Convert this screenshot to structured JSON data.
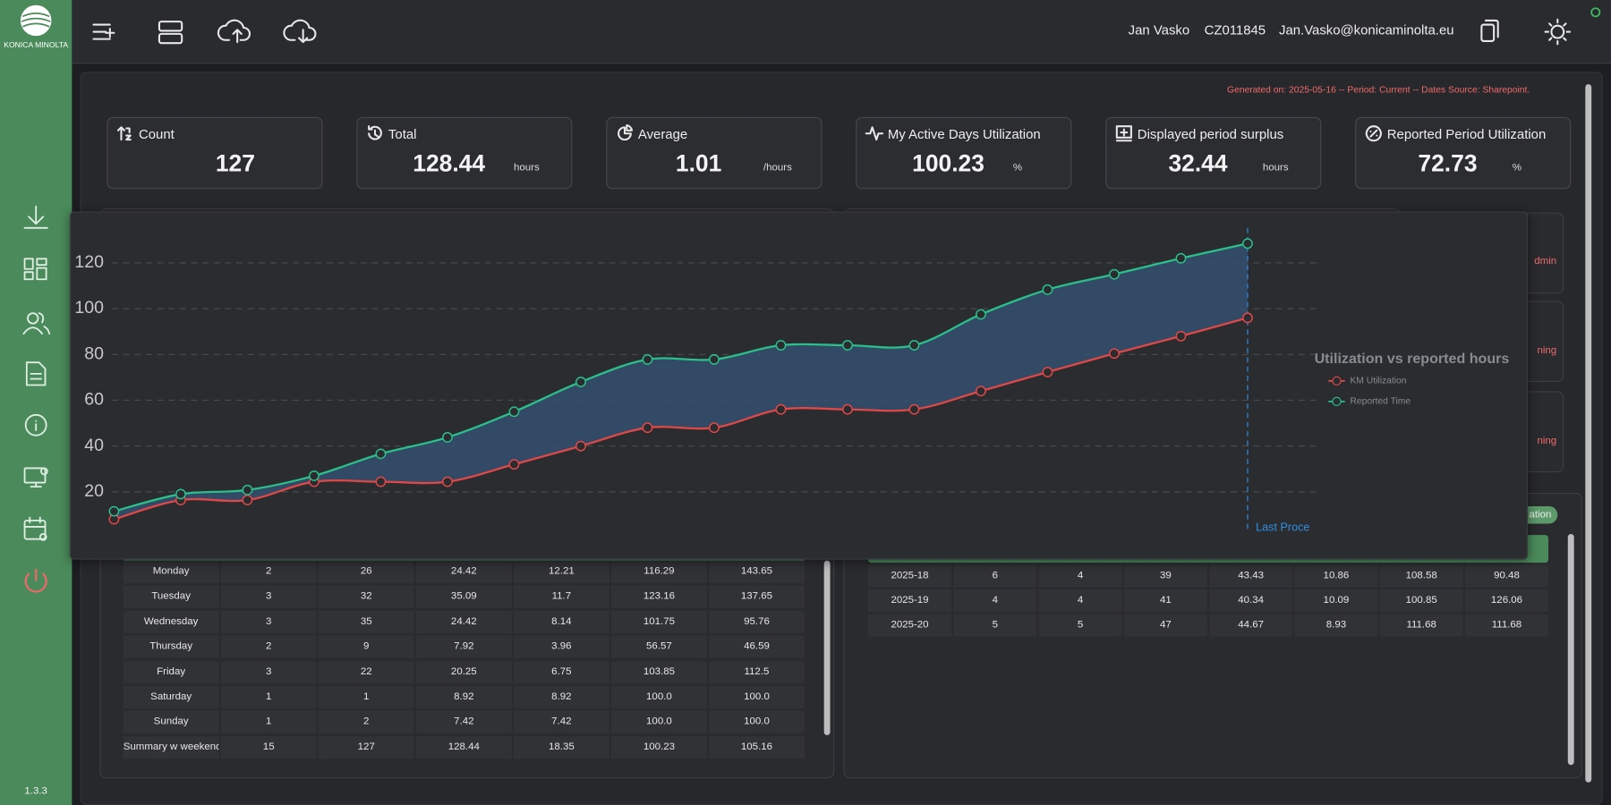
{
  "header": {
    "logo_text": "KONICA MINOLTA",
    "user_name": "Jan Vasko",
    "user_id": "CZ011845",
    "email": "Jan.Vasko@konicaminolta.eu"
  },
  "version": "1.3.3",
  "generated_note": "Generated on: 2025-05-16 -- Period: Current -- Dates Source: Sharepoint.",
  "cards": [
    {
      "title": "Count",
      "value": "127"
    },
    {
      "title": "Total",
      "value": "128.44",
      "unit": "hours"
    },
    {
      "title": "Average",
      "value": "1.01",
      "unit": "/hours"
    },
    {
      "title": "My Active Days Utilization",
      "value": "100.23",
      "unit": "%"
    },
    {
      "title": "Displayed period surplus",
      "value": "32.44",
      "unit": "hours"
    },
    {
      "title": "Reported Period Utilization",
      "value": "72.73",
      "unit": "%"
    }
  ],
  "side_fragments": [
    "dmin",
    "ning",
    "ning"
  ],
  "pill_fragment": "ation",
  "chart_data": {
    "type": "line",
    "title": "Utilization vs reported hours",
    "categories": [
      null,
      null,
      null,
      null,
      null,
      null,
      null,
      null,
      null,
      null,
      null,
      null,
      null,
      null,
      null,
      null,
      null,
      null
    ],
    "series": [
      {
        "name": "KM Utilization",
        "color": "#e04848",
        "values": [
          8,
          16.4,
          16.4,
          24.4,
          24.4,
          24.4,
          32,
          40,
          48,
          48,
          56,
          56,
          56,
          64,
          72.3,
          80.4,
          88,
          96
        ]
      },
      {
        "name": "Reported Time",
        "color": "#2bbf8a",
        "values": [
          11.5,
          19,
          20.8,
          27,
          36.6,
          43.8,
          55,
          68,
          77.8,
          77.8,
          84,
          84,
          84,
          97.5,
          108.3,
          115,
          122,
          128.44
        ]
      }
    ],
    "ylim": [
      0,
      130
    ],
    "yticks": [
      20,
      40,
      60,
      80,
      100,
      120
    ],
    "grid": true,
    "annotation": "Last Proce"
  },
  "weekday_table": {
    "rows": [
      [
        "Monday",
        "2",
        "26",
        "24.42",
        "12.21",
        "116.29",
        "143.65"
      ],
      [
        "Tuesday",
        "3",
        "32",
        "35.09",
        "11.7",
        "123.16",
        "137.65"
      ],
      [
        "Wednesday",
        "3",
        "35",
        "24.42",
        "8.14",
        "101.75",
        "95.76"
      ],
      [
        "Thursday",
        "2",
        "9",
        "7.92",
        "3.96",
        "56.57",
        "46.59"
      ],
      [
        "Friday",
        "3",
        "22",
        "20.25",
        "6.75",
        "103.85",
        "112.5"
      ],
      [
        "Saturday",
        "1",
        "1",
        "8.92",
        "8.92",
        "100.0",
        "100.0"
      ],
      [
        "Sunday",
        "1",
        "2",
        "7.42",
        "7.42",
        "100.0",
        "100.0"
      ],
      [
        "Summary w weekend",
        "15",
        "127",
        "128.44",
        "18.35",
        "100.23",
        "105.16"
      ]
    ]
  },
  "weekly_table": {
    "rows": [
      [
        "2025-18",
        "6",
        "4",
        "39",
        "43.43",
        "10.86",
        "108.58",
        "90.48"
      ],
      [
        "2025-19",
        "4",
        "4",
        "41",
        "40.34",
        "10.09",
        "100.85",
        "126.06"
      ],
      [
        "2025-20",
        "5",
        "5",
        "47",
        "44.67",
        "8.93",
        "111.68",
        "111.68"
      ]
    ]
  }
}
